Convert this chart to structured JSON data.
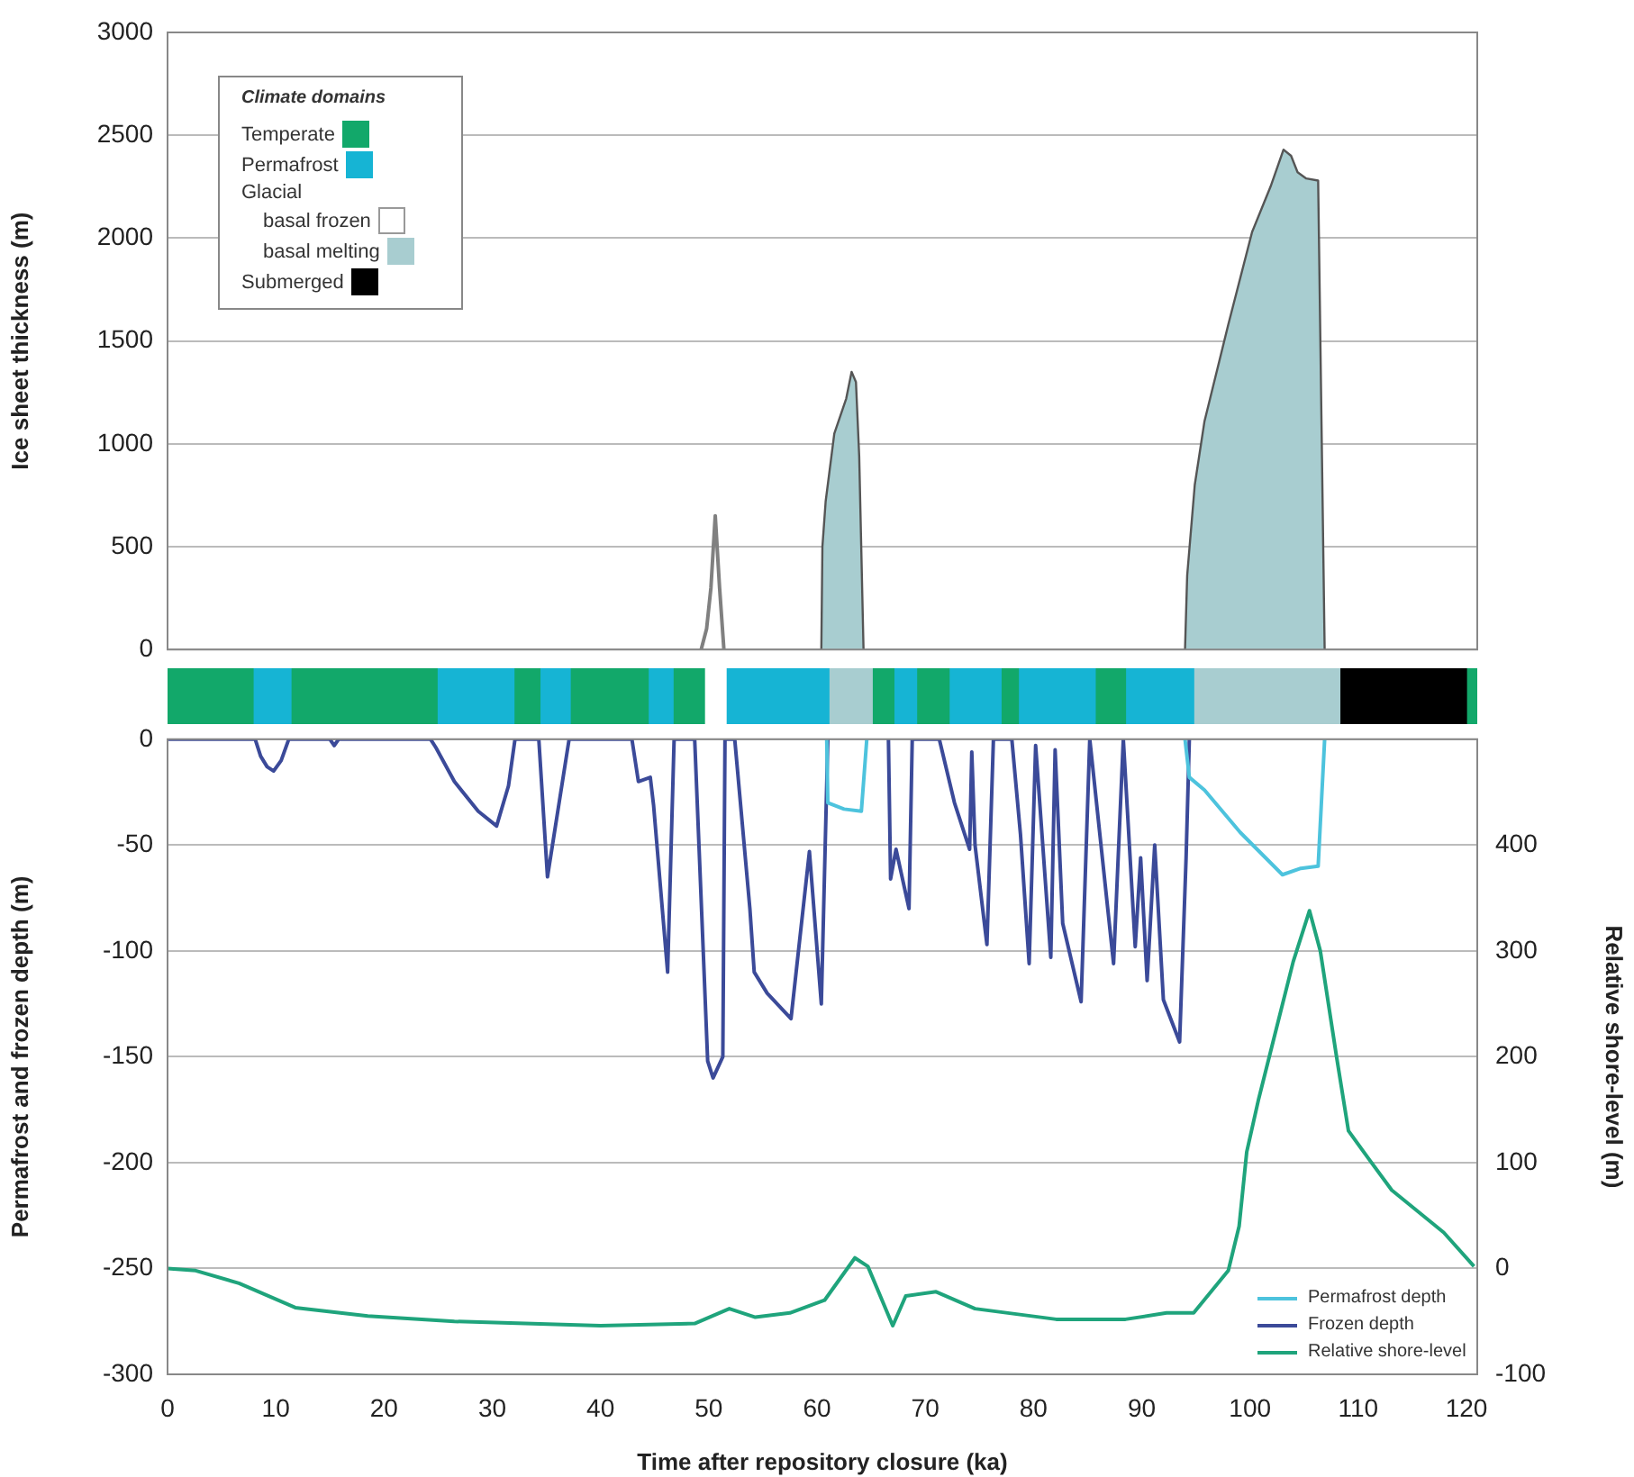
{
  "chart_data": [
    {
      "type": "area",
      "ylabel": "Ice sheet thickness (m)",
      "xlim": [
        0,
        121
      ],
      "ylim": [
        0,
        3000
      ],
      "yticks": [
        0,
        500,
        1000,
        1500,
        2000,
        2500,
        3000
      ],
      "grid": "y",
      "tick_labels": "y",
      "series": [
        {
          "type": "line",
          "color": "#808080",
          "x": [
            49.3,
            49.8,
            50.2,
            50.6,
            51.0,
            51.4
          ],
          "values": [
            0,
            100,
            300,
            650,
            300,
            0
          ]
        },
        {
          "color": "#a8cdd0",
          "x": [
            60.4,
            60.5,
            60.8,
            61.6,
            62.7,
            63.2,
            63.6,
            63.9,
            64.3,
            80,
            94.0,
            94.2,
            94.9,
            95.8,
            98.0,
            100.2,
            101.9,
            103.1,
            103.8,
            104.4,
            105.2,
            106.3,
            106.9
          ],
          "values": [
            0,
            500,
            720,
            1050,
            1220,
            1350,
            1300,
            940,
            0,
            null,
            0,
            360,
            800,
            1110,
            1580,
            2030,
            2250,
            2430,
            2400,
            2320,
            2290,
            2280,
            0
          ]
        }
      ]
    },
    {
      "type": "bar",
      "orientation": "horizontal",
      "stacked": true,
      "categories": [
        null
      ],
      "xlim": [
        0,
        121
      ],
      "tick_labels": false,
      "legend": "top left",
      "legend_title": "Climate domains",
      "annotations": [
        "Glacial"
      ],
      "series": [
        {
          "name": "Temperate",
          "color": "#12a86a",
          "values": [
            7.9
          ]
        },
        {
          "name": "Permafrost",
          "color": "#16b4d4",
          "values": [
            3.5
          ]
        },
        {
          "color": "#12a86a",
          "values": [
            13.5
          ]
        },
        {
          "color": "#16b4d4",
          "values": [
            7.1
          ]
        },
        {
          "color": "#12a86a",
          "values": [
            2.4
          ]
        },
        {
          "color": "#16b4d4",
          "values": [
            2.8
          ]
        },
        {
          "color": "#12a86a",
          "values": [
            7.2
          ]
        },
        {
          "color": "#16b4d4",
          "values": [
            2.3
          ]
        },
        {
          "color": "#12a86a",
          "values": [
            2.9
          ]
        },
        {
          "name": "basal frozen",
          "color": "#ffffff",
          "values": [
            2.0
          ]
        },
        {
          "color": "#16b4d4",
          "values": [
            9.5
          ]
        },
        {
          "name": "basal melting",
          "color": "#a8cdd0",
          "values": [
            4.0
          ]
        },
        {
          "color": "#12a86a",
          "values": [
            2.0
          ]
        },
        {
          "color": "#16b4d4",
          "values": [
            2.1
          ]
        },
        {
          "color": "#12a86a",
          "values": [
            3.0
          ]
        },
        {
          "color": "#16b4d4",
          "values": [
            4.8
          ]
        },
        {
          "color": "#12a86a",
          "values": [
            1.6
          ]
        },
        {
          "color": "#16b4d4",
          "values": [
            7.1
          ]
        },
        {
          "color": "#12a86a",
          "values": [
            2.8
          ]
        },
        {
          "color": "#16b4d4",
          "values": [
            6.3
          ]
        },
        {
          "color": "#a8cdd0",
          "values": [
            13.5
          ]
        },
        {
          "name": "Submerged",
          "color": "#000000",
          "values": [
            11.7
          ]
        },
        {
          "color": "#12a86a",
          "values": [
            1.0
          ]
        }
      ]
    },
    {
      "type": "line",
      "xlabel": "Time after repository closure (ka)",
      "ylabel": "Permafrost and frozen depth (m)",
      "y2label": "Relative shore-level (m)",
      "xlim": [
        0,
        121
      ],
      "xticks": [
        0,
        10,
        20,
        30,
        40,
        50,
        60,
        70,
        80,
        90,
        100,
        110,
        120
      ],
      "ylim": [
        -300,
        0
      ],
      "yticks": [
        -300,
        -250,
        -200,
        -150,
        -100,
        -50,
        0
      ],
      "y2lim": [
        -100,
        500
      ],
      "y2ticks": [
        -100,
        0,
        100,
        200,
        300,
        400
      ],
      "grid": "y",
      "legend": "bottom right",
      "series": [
        {
          "name": "Permafrost depth",
          "color": "#4dc3dd",
          "x": [
            60.9,
            61.0,
            62.5,
            64.1,
            64.6,
            80,
            94.0,
            94.4,
            95.8,
            99.1,
            103.0,
            104.7,
            106.3,
            106.9
          ],
          "values": [
            0,
            -30,
            -33,
            -34,
            0,
            null,
            0,
            -18,
            -24,
            -44,
            -64,
            -61,
            -60,
            0
          ]
        },
        {
          "name": "Frozen depth",
          "color": "#3b4a99",
          "x": [
            0,
            8.1,
            8.6,
            9.2,
            9.8,
            10.5,
            11.2,
            15.0,
            15.4,
            15.8,
            24.3,
            24.8,
            26.5,
            28.7,
            30.4,
            31.5,
            32.1,
            34.3,
            35.1,
            37.1,
            42.9,
            43.5,
            44.6,
            44.9,
            46.2,
            46.8,
            48.7,
            49.9,
            50.4,
            51.3,
            51.5,
            52.4,
            53.8,
            54.2,
            55.4,
            57.6,
            59.3,
            60.4,
            61.0,
            63,
            66.6,
            66.8,
            67.3,
            68.5,
            68.8,
            71.3,
            72.7,
            74.1,
            74.3,
            74.6,
            75.7,
            76.3,
            78.0,
            78.8,
            79.6,
            80.2,
            81.6,
            82.0,
            82.7,
            84.4,
            85.2,
            87.4,
            88.3,
            89.4,
            89.9,
            90.5,
            91.2,
            92.0,
            93.5,
            94.1,
            94.4
          ],
          "values": [
            0,
            0,
            -8,
            -13,
            -15,
            -10,
            0,
            0,
            -3,
            0,
            0,
            -4,
            -20,
            -34,
            -41,
            -22,
            0,
            0,
            -65,
            0,
            0,
            -20,
            -18,
            -31,
            -110,
            0,
            0,
            -152,
            -160,
            -150,
            0,
            0,
            -80,
            -110,
            -120,
            -132,
            -53,
            -125,
            0,
            null,
            0,
            -66,
            -52,
            -80,
            0,
            0,
            -30,
            -52,
            -6,
            -50,
            -97,
            0,
            0,
            -45,
            -106,
            -3,
            -103,
            -5,
            -87,
            -124,
            0,
            -106,
            0,
            -98,
            -56,
            -114,
            -50,
            -123,
            -143,
            -56,
            0
          ]
        },
        {
          "name": "Relative shore-level",
          "color": "#1fa47c",
          "axis": "y2",
          "x": [
            0,
            2.6,
            6.6,
            11.8,
            18.5,
            26.5,
            40,
            48.7,
            51.9,
            54.3,
            57.5,
            60.7,
            63.5,
            64.7,
            67.0,
            68.2,
            71.0,
            74.6,
            82.1,
            88.5,
            92.3,
            94.8,
            98.0,
            99.0,
            99.7,
            100.8,
            102.4,
            104.0,
            105.5,
            106.5,
            108.0,
            109.1,
            110.8,
            113.1,
            117.9,
            120.7
          ],
          "values": [
            0,
            -2,
            -14,
            -37,
            -45,
            -50,
            -54,
            -52,
            -38,
            -46,
            -42,
            -30,
            10,
            2,
            -54,
            -26,
            -22,
            -38,
            -48,
            -48,
            -42,
            -42,
            -2,
            40,
            110,
            160,
            225,
            290,
            338,
            300,
            200,
            130,
            106,
            74,
            34,
            2
          ]
        }
      ]
    }
  ]
}
